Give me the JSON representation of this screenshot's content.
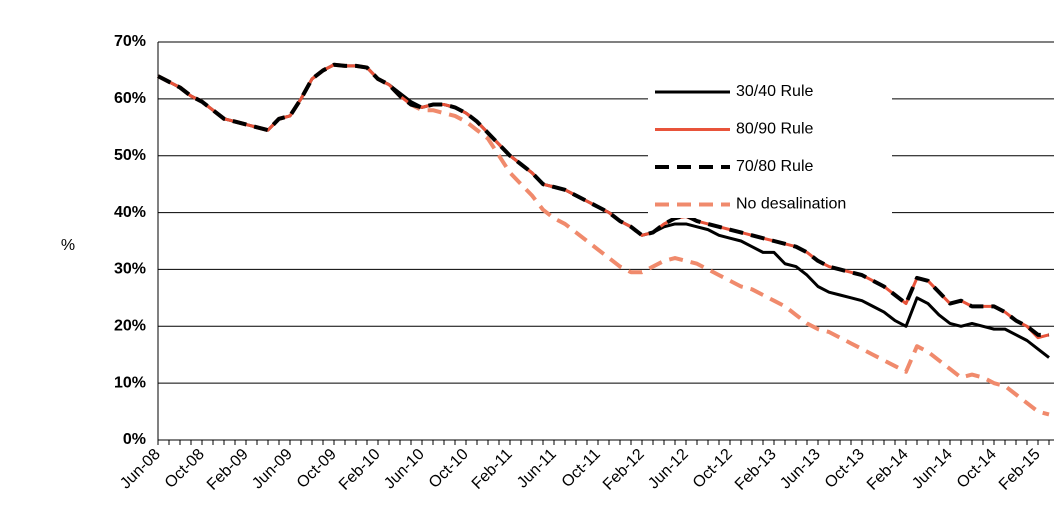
{
  "chart_data": {
    "type": "line",
    "y_label": "%",
    "categories": [
      "Jun-08",
      null,
      null,
      null,
      "Oct-08",
      null,
      null,
      null,
      "Feb-09",
      null,
      null,
      null,
      "Jun-09",
      null,
      null,
      null,
      "Oct-09",
      null,
      null,
      null,
      "Feb-10",
      null,
      null,
      null,
      "Jun-10",
      null,
      null,
      null,
      "Oct-10",
      null,
      null,
      null,
      "Feb-11",
      null,
      null,
      null,
      "Jun-11",
      null,
      null,
      null,
      "Oct-11",
      null,
      null,
      null,
      "Feb-12",
      null,
      null,
      null,
      "Jun-12",
      null,
      null,
      null,
      "Oct-12",
      null,
      null,
      null,
      "Feb-13",
      null,
      null,
      null,
      "Jun-13",
      null,
      null,
      null,
      "Oct-13",
      null,
      null,
      null,
      "Feb-14",
      null,
      null,
      null,
      "Jun-14",
      null,
      null,
      null,
      "Oct-14",
      null,
      null,
      null,
      "Feb-15",
      null
    ],
    "series": [
      {
        "name": "No desalination",
        "color": "#f08a6c",
        "dashed": true,
        "values": [
          64,
          63,
          62,
          60.5,
          59.5,
          58,
          56.5,
          56,
          55.5,
          55,
          54.5,
          56.5,
          57,
          60,
          63.5,
          65,
          66,
          65.8,
          65.8,
          65.5,
          63.5,
          62.5,
          60.5,
          59,
          58,
          58,
          57.5,
          57,
          56,
          54.5,
          53,
          50,
          47,
          45,
          43,
          40.5,
          39,
          38,
          36.5,
          35,
          33.5,
          32,
          30.5,
          29.5,
          29.5,
          30.5,
          31.5,
          32,
          31.5,
          31,
          30,
          29,
          28,
          27,
          26.5,
          25.5,
          24.5,
          23.5,
          22,
          20.5,
          19.5,
          19,
          18,
          17,
          16,
          15,
          14,
          13,
          12,
          16.5,
          15.5,
          14,
          12.5,
          11,
          11.5,
          11,
          10,
          9.5,
          8,
          6.5,
          5,
          4.5
        ]
      },
      {
        "name": "30/40 Rule",
        "color": "#000000",
        "dashed": false,
        "values": [
          64,
          63,
          62,
          60.5,
          59.5,
          58,
          56.5,
          56,
          55.5,
          55,
          54.5,
          56.5,
          57,
          60,
          63.5,
          65,
          66,
          65.8,
          65.8,
          65.5,
          63.5,
          62.5,
          61,
          59.5,
          58.5,
          59,
          59,
          58.5,
          57.5,
          56,
          54,
          52,
          50,
          48.5,
          47,
          45,
          44.5,
          44,
          43,
          42,
          41,
          40,
          38.5,
          37.5,
          36,
          36.5,
          37.5,
          38,
          38,
          37.5,
          37,
          36,
          35.5,
          35,
          34,
          33,
          33,
          31,
          30.5,
          29,
          27,
          26,
          25.5,
          25,
          24.5,
          23.5,
          22.5,
          21,
          20,
          25,
          24,
          22,
          20.5,
          20,
          20.5,
          20,
          19.5,
          19.5,
          18.5,
          17.5,
          16,
          14.5
        ]
      },
      {
        "name": "80/90 Rule",
        "color": "#e8533a",
        "dashed": false,
        "values": [
          64,
          63,
          62,
          60.5,
          59.5,
          58,
          56.5,
          56,
          55.5,
          55,
          54.5,
          56.5,
          57,
          60,
          63.5,
          65,
          66,
          65.8,
          65.8,
          65.5,
          63.5,
          62.5,
          60.5,
          59,
          58.5,
          59,
          59,
          58.5,
          57.5,
          56,
          54,
          52,
          50,
          48.5,
          47,
          45,
          44.5,
          44,
          43,
          42,
          41,
          40,
          38.5,
          37.5,
          36,
          36.5,
          38,
          39,
          39.3,
          38.5,
          38,
          37.5,
          37,
          36.5,
          36,
          35.5,
          35,
          34.5,
          34,
          33,
          31.5,
          30.5,
          30,
          29.5,
          29,
          28,
          27,
          25.5,
          24,
          28.5,
          28,
          26,
          24,
          24.5,
          23.5,
          23.5,
          23.5,
          22.5,
          21,
          20,
          18,
          18.5
        ]
      },
      {
        "name": "70/80 Rule",
        "color": "#000000",
        "dashed": true,
        "values": [
          64,
          63,
          62,
          60.5,
          59.5,
          58,
          56.5,
          56,
          55.5,
          55,
          54.5,
          56.5,
          57,
          60,
          63.5,
          65,
          66,
          65.8,
          65.8,
          65.5,
          63.5,
          62.5,
          60.5,
          59,
          58.5,
          59,
          59,
          58.5,
          57.5,
          56,
          54,
          52,
          50,
          48.5,
          47,
          45,
          44.5,
          44,
          43,
          42,
          41,
          40,
          38.5,
          37.5,
          36,
          36.5,
          38,
          39,
          39.5,
          38.5,
          38,
          37.5,
          37,
          36.5,
          36,
          35.5,
          35,
          34.5,
          34,
          33,
          31.5,
          30.5,
          30,
          29.5,
          29,
          28,
          27,
          25.5,
          24,
          28.5,
          28,
          26,
          24,
          24.5,
          23.5,
          23.5,
          23.5,
          22.5,
          21,
          20,
          18.5,
          18.5
        ]
      }
    ],
    "legend_order": [
      1,
      2,
      3,
      0
    ],
    "ylim": [
      0,
      70
    ],
    "yticks": [
      {
        "value": 0,
        "label": "0%"
      },
      {
        "value": 10,
        "label": "10%"
      },
      {
        "value": 20,
        "label": "20%"
      },
      {
        "value": 30,
        "label": "30%"
      },
      {
        "value": 40,
        "label": "40%"
      },
      {
        "value": 50,
        "label": "50%"
      },
      {
        "value": 60,
        "label": "60%"
      },
      {
        "value": 70,
        "label": "70%"
      }
    ],
    "grid": true
  }
}
